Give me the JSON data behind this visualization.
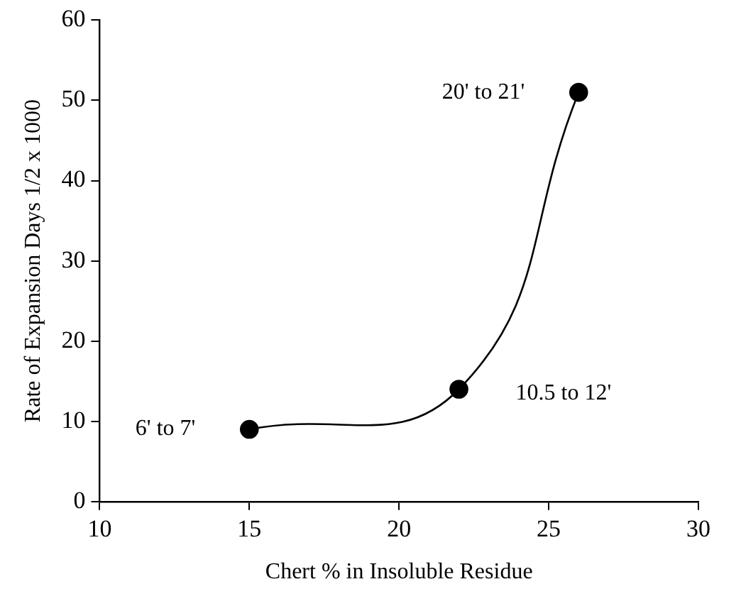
{
  "chart_data": {
    "type": "line",
    "xlabel": "Chert % in Insoluble Residue",
    "ylabel": "Rate of Expansion Days 1/2 x 1000",
    "x": [
      15,
      22,
      26
    ],
    "series": [
      {
        "color": "#000000",
        "values": [
          9,
          14,
          51
        ]
      }
    ],
    "marker": "circle",
    "line_style": "solid",
    "grid": false,
    "legend": false,
    "xlim": [
      10,
      30
    ],
    "xticks": [
      10,
      15,
      20,
      25,
      30
    ],
    "ylim": [
      0,
      60
    ],
    "yticks": [
      0,
      10,
      20,
      30,
      40,
      50,
      60
    ],
    "annotations": [
      {
        "text": "6' to 7'",
        "x": 15,
        "y": 9
      },
      {
        "text": "10.5 to 12'",
        "x": 22,
        "y": 14
      },
      {
        "text": "20' to 21'",
        "x": 26,
        "y": 51
      }
    ]
  }
}
